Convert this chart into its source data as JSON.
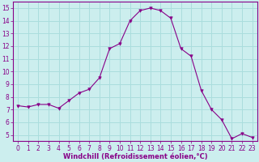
{
  "x": [
    0,
    1,
    2,
    3,
    4,
    5,
    6,
    7,
    8,
    9,
    10,
    11,
    12,
    13,
    14,
    15,
    16,
    17,
    18,
    19,
    20,
    21,
    22,
    23
  ],
  "y": [
    7.3,
    7.2,
    7.4,
    7.4,
    7.1,
    7.7,
    8.3,
    8.6,
    9.5,
    11.8,
    12.2,
    14.0,
    14.8,
    15.0,
    14.8,
    14.2,
    11.8,
    11.2,
    8.5,
    7.0,
    6.2,
    4.7,
    5.1,
    4.8
  ],
  "line_color": "#880088",
  "marker": "v",
  "marker_size": 2.5,
  "bg_color": "#cceeee",
  "grid_color": "#aadddd",
  "axis_color": "#880088",
  "xlabel": "Windchill (Refroidissement éolien,°C)",
  "xlim": [
    -0.5,
    23.5
  ],
  "ylim": [
    4.5,
    15.5
  ],
  "yticks": [
    5,
    6,
    7,
    8,
    9,
    10,
    11,
    12,
    13,
    14,
    15
  ],
  "xticks": [
    0,
    1,
    2,
    3,
    4,
    5,
    6,
    7,
    8,
    9,
    10,
    11,
    12,
    13,
    14,
    15,
    16,
    17,
    18,
    19,
    20,
    21,
    22,
    23
  ],
  "tick_fontsize": 5.5,
  "label_fontsize": 6.0
}
